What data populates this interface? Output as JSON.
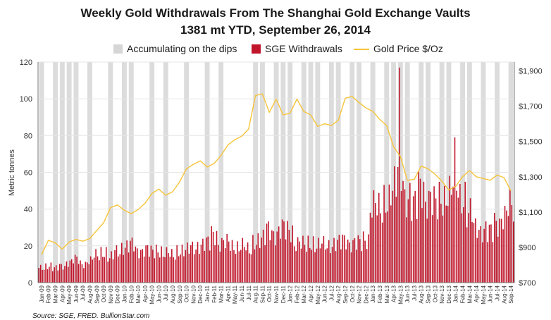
{
  "chart_data": {
    "type": "bar+line",
    "title": "Weekly Gold Withdrawals From The Shanghai Gold Exchange Vaults",
    "subtitle": "1381 mt YTD, September 26, 2014",
    "ylabel_left": "Metric tonnes",
    "ylim_left": [
      0,
      120
    ],
    "yticks_left": [
      "0",
      "20",
      "40",
      "60",
      "80",
      "100",
      "120"
    ],
    "ylim_right": [
      700,
      1950
    ],
    "yticks_right": [
      "$700",
      "$900",
      "$1,100",
      "$1,300",
      "$1,500",
      "$1,700",
      "$1,900"
    ],
    "ytick_values_right": [
      700,
      900,
      1100,
      1300,
      1500,
      1700,
      1900
    ],
    "legend": [
      {
        "label": "Accumulating on the dips",
        "color": "#d6d6d6"
      },
      {
        "label": "SGE Withdrawals",
        "color": "#c0152a"
      },
      {
        "label": "Gold Price $/Oz",
        "color": "#f5c43a"
      }
    ],
    "months": [
      "Jan-09",
      "Feb-09",
      "Mar-09",
      "Apr-09",
      "May-09",
      "Jun-09",
      "Jul-09",
      "Aug-09",
      "Sep-09",
      "Oct-09",
      "Nov-09",
      "Dec-09",
      "Jan-10",
      "Feb-10",
      "Mar-10",
      "Apr-10",
      "May-10",
      "Jun-10",
      "Jul-10",
      "Aug-10",
      "Sep-10",
      "Oct-10",
      "Nov-10",
      "Dec-10",
      "Jan-11",
      "Feb-11",
      "Mar-11",
      "Apr-11",
      "May-11",
      "Jun-11",
      "Jul-11",
      "Aug-11",
      "Sep-11",
      "Oct-11",
      "Nov-11",
      "Dec-11",
      "Jan-12",
      "Feb-12",
      "Mar-12",
      "Apr-12",
      "May-12",
      "Jun-12",
      "Jul-12",
      "Aug-12",
      "Sep-12",
      "Oct-12",
      "Nov-12",
      "Dec-12",
      "Jan-13",
      "Feb-13",
      "Mar-13",
      "Apr-13",
      "May-13",
      "Jun-13",
      "Jul-13",
      "Aug-13",
      "Sep-13",
      "Oct-13",
      "Nov-13",
      "Dec-13",
      "Jan-14",
      "Feb-14",
      "Mar-14",
      "Apr-14",
      "May-14",
      "Jun-14",
      "Jul-14",
      "Aug-14",
      "Sep-14"
    ],
    "withdrawals_monthly_avg": [
      8,
      9,
      8,
      9,
      11,
      13,
      10,
      12,
      15,
      16,
      14,
      17,
      19,
      21,
      17,
      18,
      17,
      17,
      16,
      15,
      17,
      18,
      19,
      20,
      22,
      26,
      21,
      22,
      19,
      20,
      18,
      22,
      24,
      29,
      26,
      30,
      28,
      21,
      21,
      21,
      20,
      21,
      20,
      22,
      23,
      21,
      22,
      23,
      42,
      40,
      44,
      52,
      60,
      45,
      43,
      52,
      44,
      44,
      45,
      48,
      55,
      45,
      38,
      30,
      28,
      28,
      32,
      36,
      42
    ],
    "withdrawals_spikes": [
      {
        "month": "May-13",
        "value": 117
      },
      {
        "month": "Jan-14",
        "value": 79
      }
    ],
    "gold_price_monthly": [
      858,
      940,
      925,
      890,
      930,
      945,
      935,
      950,
      995,
      1040,
      1125,
      1140,
      1110,
      1090,
      1115,
      1150,
      1205,
      1230,
      1195,
      1215,
      1270,
      1345,
      1370,
      1390,
      1355,
      1375,
      1420,
      1480,
      1510,
      1530,
      1570,
      1760,
      1770,
      1665,
      1740,
      1650,
      1660,
      1740,
      1670,
      1650,
      1585,
      1600,
      1590,
      1620,
      1745,
      1755,
      1720,
      1690,
      1670,
      1625,
      1590,
      1470,
      1415,
      1280,
      1285,
      1360,
      1345,
      1315,
      1275,
      1225,
      1245,
      1300,
      1335,
      1300,
      1290,
      1280,
      1310,
      1295,
      1220
    ],
    "highlight_months": [
      "Jan-09",
      "Mar-09",
      "Apr-09",
      "May-09",
      "Jun-09",
      "Aug-09",
      "Nov-09",
      "Jan-10",
      "Feb-10",
      "May-10",
      "Jul-10",
      "Oct-10",
      "Jan-11",
      "Mar-11",
      "Aug-11",
      "Sep-11",
      "Nov-11",
      "Dec-11",
      "Jan-12",
      "Mar-12",
      "Apr-12",
      "May-12",
      "Jul-12",
      "Aug-12",
      "Oct-12",
      "Nov-12",
      "Jan-13",
      "Mar-13",
      "Apr-13",
      "May-13",
      "Jun-13",
      "Aug-13",
      "Sep-13",
      "Nov-13",
      "Dec-13",
      "Feb-14",
      "Mar-14",
      "May-14",
      "Jul-14",
      "Sep-14"
    ],
    "source": "Source: SGE, FRED. BullionStar.com"
  }
}
